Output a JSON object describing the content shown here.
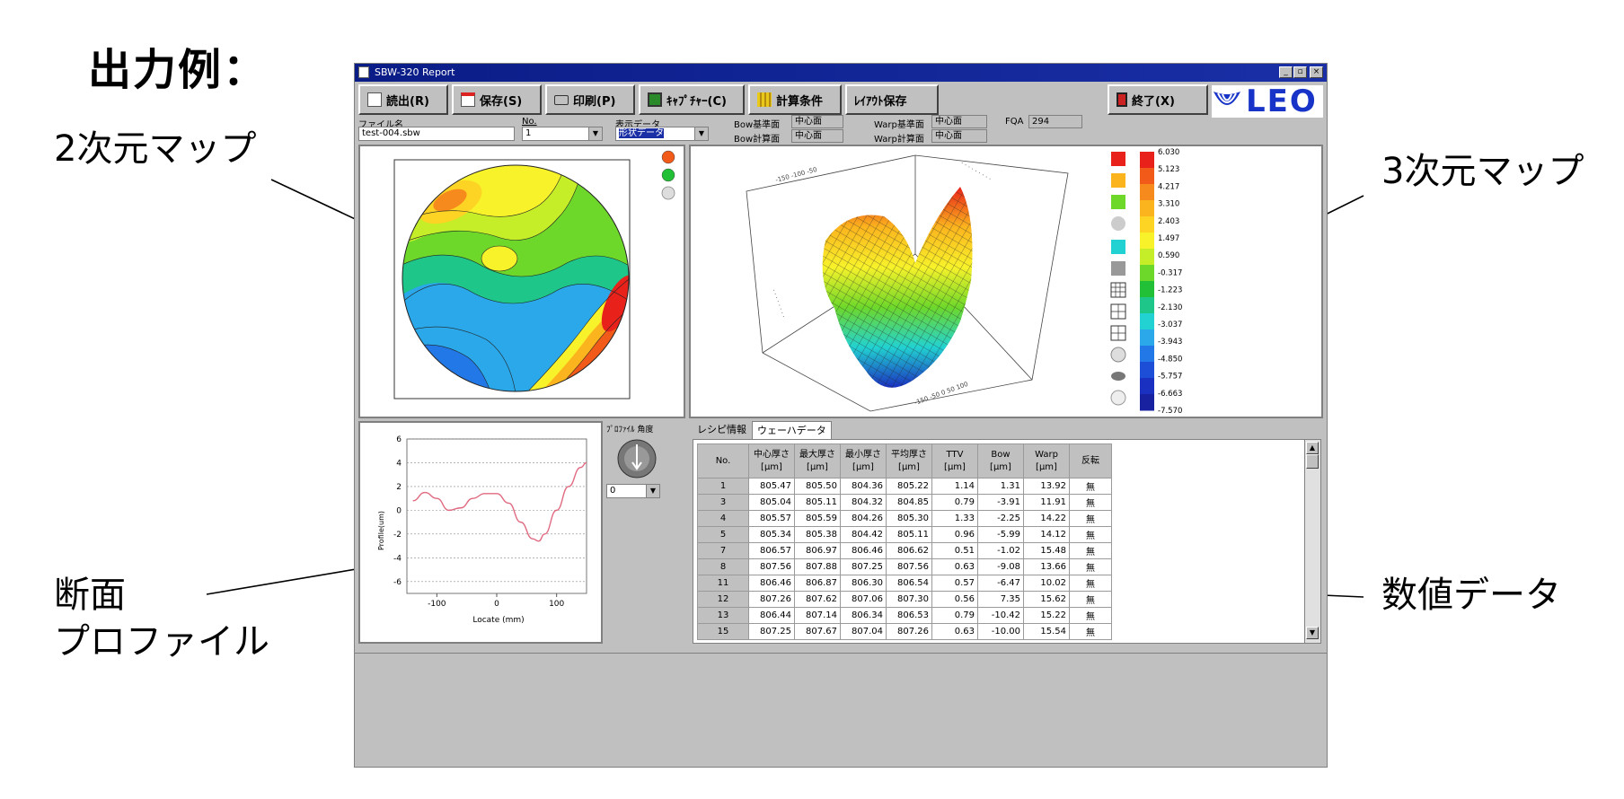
{
  "page_title": "出力例：",
  "callouts": {
    "map2d": "2次元マップ",
    "map3d": "3次元マップ",
    "profile_line1": "断面",
    "profile_line2": "プロファイル",
    "numeric": "数値データ"
  },
  "window": {
    "title": "SBW-320 Report",
    "controls": [
      "_",
      "▫",
      "×"
    ]
  },
  "toolbar": {
    "read": "読出(R)",
    "save": "保存(S)",
    "print": "印刷(P)",
    "capture": "ｷｬﾌﾟﾁｬｰ(C)",
    "calc": "計算条件",
    "layout_save": "ﾚｲｱｳﾄ保存",
    "exit": "終了(X)",
    "logo": "LEO"
  },
  "fields": {
    "file_label": "ファイル名",
    "file_value": "test-004.sbw",
    "no_label": "No.",
    "no_value": "1",
    "display_label": "表示データ",
    "display_value": "形状データ",
    "bow_ref_label": "Bow基準面",
    "bow_ref_value": "中心面",
    "bow_calc_label": "Bow計算面",
    "bow_calc_value": "中心面",
    "warp_ref_label": "Warp基準面",
    "warp_ref_value": "中心面",
    "warp_calc_label": "Warp計算面",
    "warp_calc_value": "中心面",
    "fqa_label": "FQA",
    "fqa_value": "294"
  },
  "colorbar": {
    "labels": [
      "6.030",
      "5.123",
      "4.217",
      "3.310",
      "2.403",
      "1.497",
      "0.590",
      "-0.317",
      "-1.223",
      "-2.130",
      "-3.037",
      "-3.943",
      "-4.850",
      "-5.757",
      "-6.663",
      "-7.570"
    ],
    "colors": [
      "#e8221a",
      "#f25a1a",
      "#f78a1c",
      "#fbb41e",
      "#fdd424",
      "#f8f22a",
      "#c6ee28",
      "#6ed82a",
      "#22c036",
      "#1ec68a",
      "#22d2d2",
      "#2aa8ea",
      "#2278e6",
      "#1c4ed8",
      "#1a30c0",
      "#1822a0"
    ]
  },
  "profile": {
    "angle_label": "ﾌﾟﾛﾌｧｲﾙ 角度",
    "angle_value": "0",
    "xlabel": "Locate (mm)",
    "ylabel": "Profile(um)",
    "x_ticks": [
      "-100",
      "0",
      "100"
    ],
    "y_ticks": [
      "6",
      "4",
      "2",
      "0",
      "-2",
      "-4",
      "-6"
    ]
  },
  "chart_data": {
    "type": "line",
    "title": "",
    "xlabel": "Locate (mm)",
    "ylabel": "Profile(um)",
    "xlim": [
      -150,
      150
    ],
    "ylim": [
      -7,
      6
    ],
    "grid": true,
    "x": [
      -140,
      -120,
      -100,
      -80,
      -60,
      -40,
      -20,
      0,
      20,
      40,
      60,
      70,
      80,
      100,
      120,
      140,
      150
    ],
    "y": [
      0.8,
      1.5,
      1.0,
      0.0,
      0.2,
      1.0,
      1.4,
      1.4,
      0.6,
      -1.0,
      -2.4,
      -2.6,
      -2.0,
      0.0,
      2.0,
      3.6,
      4.0
    ]
  },
  "data_tabs": [
    "レシピ情報",
    "ウェーハデータ"
  ],
  "table": {
    "headers": [
      [
        "No.",
        ""
      ],
      [
        "中心厚さ",
        "[μm]"
      ],
      [
        "最大厚さ",
        "[μm]"
      ],
      [
        "最小厚さ",
        "[μm]"
      ],
      [
        "平均厚さ",
        "[μm]"
      ],
      [
        "TTV",
        "[μm]"
      ],
      [
        "Bow",
        "[μm]"
      ],
      [
        "Warp",
        "[μm]"
      ],
      [
        "反転",
        ""
      ]
    ],
    "rows": [
      [
        "1",
        "805.47",
        "805.50",
        "804.36",
        "805.22",
        "1.14",
        "1.31",
        "13.92",
        "無"
      ],
      [
        "3",
        "805.04",
        "805.11",
        "804.32",
        "804.85",
        "0.79",
        "-3.91",
        "11.91",
        "無"
      ],
      [
        "4",
        "805.57",
        "805.59",
        "804.26",
        "805.30",
        "1.33",
        "-2.25",
        "14.22",
        "無"
      ],
      [
        "5",
        "805.34",
        "805.38",
        "804.42",
        "805.11",
        "0.96",
        "-5.99",
        "14.12",
        "無"
      ],
      [
        "7",
        "806.57",
        "806.97",
        "806.46",
        "806.62",
        "0.51",
        "-1.02",
        "15.48",
        "無"
      ],
      [
        "8",
        "807.56",
        "807.88",
        "807.25",
        "807.56",
        "0.63",
        "-9.08",
        "13.66",
        "無"
      ],
      [
        "11",
        "806.46",
        "806.87",
        "806.30",
        "806.54",
        "0.57",
        "-6.47",
        "10.02",
        "無"
      ],
      [
        "12",
        "807.26",
        "807.62",
        "807.06",
        "807.30",
        "0.56",
        "7.35",
        "15.62",
        "無"
      ],
      [
        "13",
        "806.44",
        "807.14",
        "806.34",
        "806.53",
        "0.79",
        "-10.42",
        "15.22",
        "無"
      ],
      [
        "15",
        "807.25",
        "807.67",
        "807.04",
        "807.26",
        "0.63",
        "-10.00",
        "15.54",
        "無"
      ]
    ]
  }
}
